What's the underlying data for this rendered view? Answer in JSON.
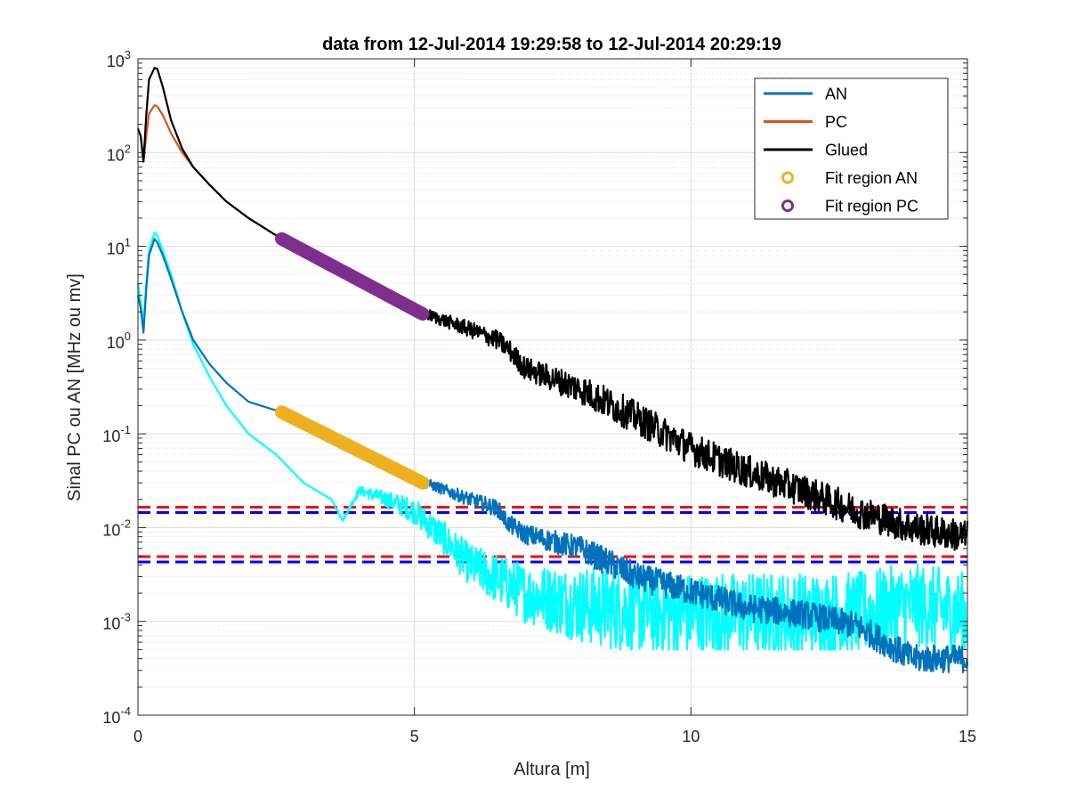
{
  "chart_data": {
    "type": "line",
    "title": "data from 12-Jul-2014 19:29:58 to 12-Jul-2014 20:29:19",
    "xlabel": "Altura [m]",
    "ylabel": "Sinal PC ou AN [MHz ou mv]",
    "xlim": [
      0,
      15
    ],
    "ylim": [
      0.0001,
      1000
    ],
    "yscale": "log",
    "grid": true,
    "minor_grid": true,
    "legend_position": "top-right",
    "x_ticks": [
      {
        "value": 0,
        "label": "0"
      },
      {
        "value": 5,
        "label": "5"
      },
      {
        "value": 10,
        "label": "10"
      },
      {
        "value": 15,
        "label": "15"
      }
    ],
    "y_ticks": [
      {
        "value": 0.0001,
        "base": "10",
        "exp": "-4"
      },
      {
        "value": 0.001,
        "base": "10",
        "exp": "-3"
      },
      {
        "value": 0.01,
        "base": "10",
        "exp": "-2"
      },
      {
        "value": 0.1,
        "base": "10",
        "exp": "-1"
      },
      {
        "value": 1,
        "base": "10",
        "exp": "0"
      },
      {
        "value": 10,
        "base": "10",
        "exp": "1"
      },
      {
        "value": 100,
        "base": "10",
        "exp": "2"
      },
      {
        "value": 1000,
        "base": "10",
        "exp": "3"
      }
    ],
    "series": [
      {
        "name": "AN",
        "color": "#0072BD",
        "in_legend": true,
        "noise": 0.3,
        "x": [
          0.0,
          0.05,
          0.1,
          0.15,
          0.2,
          0.3,
          0.35,
          0.45,
          0.6,
          0.8,
          1.0,
          1.3,
          1.6,
          2.0,
          2.6,
          3.0,
          4.0,
          5.2,
          6.0,
          6.5,
          6.7,
          7.0,
          8.0,
          9.0,
          10.0,
          11.0,
          12.0,
          13.0,
          13.5,
          14.0,
          15.0
        ],
        "y": [
          3.0,
          2.2,
          1.2,
          3.5,
          8.0,
          12.0,
          11.0,
          8.0,
          4.5,
          2.0,
          1.0,
          0.55,
          0.35,
          0.22,
          0.17,
          0.12,
          0.06,
          0.03,
          0.02,
          0.016,
          0.011,
          0.0085,
          0.006,
          0.003,
          0.0021,
          0.0014,
          0.0012,
          0.0009,
          0.0006,
          0.0004,
          0.0004
        ]
      },
      {
        "name": "PC",
        "color": "#D95319",
        "in_legend": true,
        "noise": 0,
        "x": [
          0.0,
          0.05,
          0.1,
          0.15,
          0.2,
          0.3,
          0.35,
          0.45,
          0.6,
          0.8,
          1.0,
          1.3,
          1.6,
          2.0,
          2.6
        ],
        "y": [
          180,
          150,
          80,
          150,
          260,
          320,
          310,
          250,
          160,
          100,
          70,
          45,
          30,
          20,
          12
        ]
      },
      {
        "name": "Glued",
        "color": "#000000",
        "in_legend": true,
        "noise": 0.35,
        "x": [
          0.0,
          0.05,
          0.1,
          0.15,
          0.2,
          0.3,
          0.35,
          0.45,
          0.6,
          0.8,
          1.0,
          1.3,
          1.6,
          2.0,
          2.6,
          3.0,
          4.0,
          5.2,
          6.0,
          6.5,
          6.7,
          7.0,
          8.0,
          9.0,
          10.0,
          11.0,
          12.0,
          13.0,
          14.0,
          15.0
        ],
        "y": [
          180,
          150,
          80,
          250,
          600,
          800,
          780,
          500,
          220,
          110,
          70,
          45,
          30,
          20,
          12,
          8.5,
          4.5,
          1.9,
          1.3,
          1.0,
          0.8,
          0.5,
          0.3,
          0.15,
          0.07,
          0.04,
          0.025,
          0.015,
          0.01,
          0.008
        ]
      },
      {
        "name": "AN (second)",
        "color": "#00FFFF",
        "in_legend": false,
        "noise": 0.9,
        "floor": 0.0005,
        "x": [
          0.0,
          0.05,
          0.1,
          0.15,
          0.2,
          0.3,
          0.35,
          0.45,
          0.6,
          0.8,
          1.0,
          1.3,
          1.6,
          2.0,
          2.5,
          3.0,
          3.5,
          3.7,
          4.0,
          4.5,
          5.0,
          5.5,
          6.0,
          7.0,
          8.0,
          9.0,
          10.0,
          11.0,
          12.0,
          13.0,
          14.0,
          15.0
        ],
        "y": [
          4.0,
          2.5,
          1.5,
          4.0,
          9.0,
          14.0,
          13.0,
          9.0,
          5.0,
          2.0,
          0.9,
          0.4,
          0.2,
          0.1,
          0.06,
          0.03,
          0.02,
          0.012,
          0.025,
          0.02,
          0.015,
          0.008,
          0.004,
          0.002,
          0.0015,
          0.0013,
          0.0012,
          0.0012,
          0.0012,
          0.0012,
          0.0015,
          0.0012
        ]
      }
    ],
    "fit_regions": [
      {
        "name": "Fit region AN",
        "color": "#EDB120",
        "x": [
          2.6,
          5.15
        ],
        "y": [
          0.17,
          0.03
        ]
      },
      {
        "name": "Fit region PC",
        "color": "#7E2F8E",
        "x": [
          2.6,
          5.15
        ],
        "y": [
          12,
          1.9
        ]
      }
    ],
    "reference_lines": [
      {
        "value": 0.0165,
        "color": "#FF0000"
      },
      {
        "value": 0.0145,
        "color": "#0000FF"
      },
      {
        "value": 0.0049,
        "color": "#FF0000"
      },
      {
        "value": 0.0043,
        "color": "#0000FF"
      }
    ]
  }
}
